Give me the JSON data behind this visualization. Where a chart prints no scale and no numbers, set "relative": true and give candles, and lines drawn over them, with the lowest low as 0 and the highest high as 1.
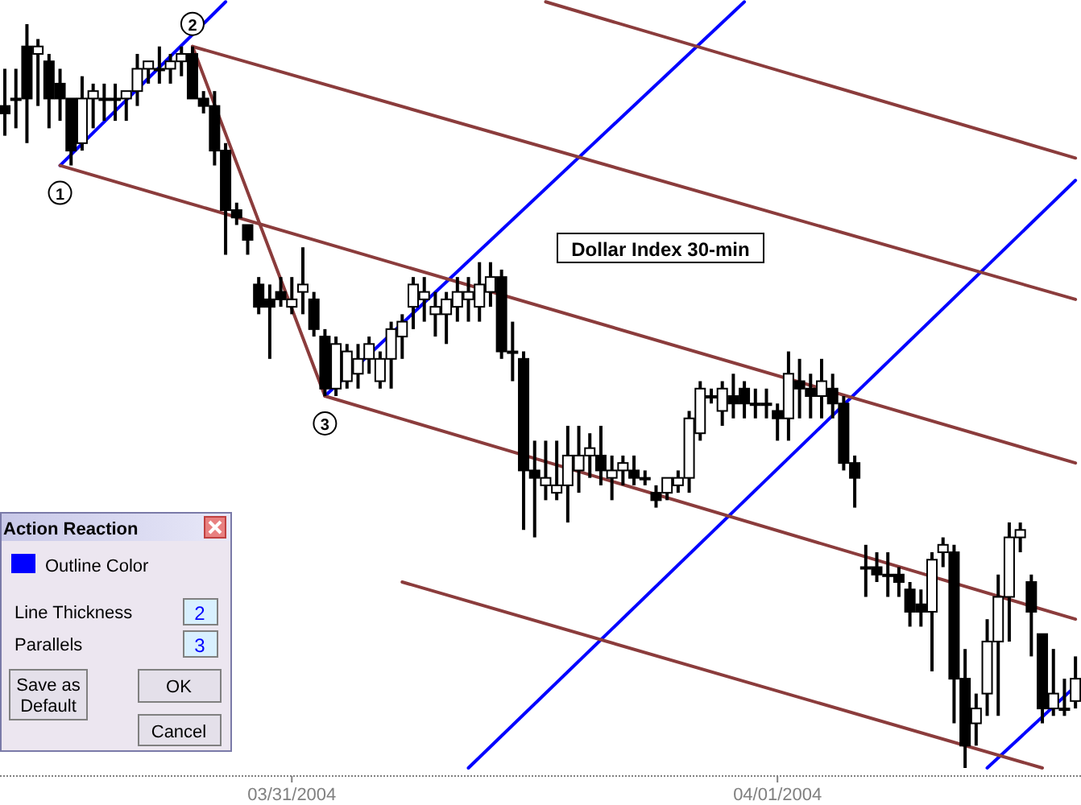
{
  "chart_data": {
    "type": "candlestick",
    "title": "Dollar Index 30-min",
    "relative": true,
    "color": "#000000",
    "categories": [
      null,
      null,
      null,
      null,
      null,
      null,
      null,
      null,
      null,
      null,
      null,
      null,
      null,
      null,
      null,
      null,
      null,
      null,
      null,
      null,
      null,
      null,
      null,
      null,
      null,
      null,
      "03/31/2004",
      null,
      null,
      null,
      null,
      null,
      null,
      null,
      null,
      null,
      null,
      null,
      null,
      null,
      null,
      null,
      null,
      null,
      null,
      null,
      null,
      null,
      null,
      null,
      null,
      null,
      null,
      null,
      null,
      null,
      null,
      null,
      null,
      null,
      null,
      null,
      null,
      null,
      null,
      null,
      null,
      null,
      null,
      null,
      "04/01/2004",
      null,
      null,
      null,
      null,
      null,
      null,
      null,
      null,
      null,
      null,
      null,
      null,
      null,
      null,
      null,
      null,
      null,
      null,
      null,
      null,
      null,
      null,
      null,
      null,
      null,
      null,
      null
    ],
    "ohlc": [
      [
        0.89,
        0.94,
        0.85,
        0.88
      ],
      [
        0.9,
        0.94,
        0.86,
        0.9
      ],
      [
        0.97,
        1.0,
        0.84,
        0.9
      ],
      [
        0.96,
        0.98,
        0.89,
        0.97
      ],
      [
        0.95,
        0.96,
        0.86,
        0.9
      ],
      [
        0.92,
        0.94,
        0.87,
        0.9
      ],
      [
        0.9,
        0.9,
        0.81,
        0.83
      ],
      [
        0.84,
        0.93,
        0.83,
        0.9
      ],
      [
        0.9,
        0.92,
        0.86,
        0.91
      ],
      [
        0.9,
        0.92,
        0.87,
        0.9
      ],
      [
        0.9,
        0.92,
        0.87,
        0.9
      ],
      [
        0.9,
        0.91,
        0.87,
        0.91
      ],
      [
        0.91,
        0.96,
        0.89,
        0.94
      ],
      [
        0.94,
        0.95,
        0.92,
        0.95
      ],
      [
        0.94,
        0.97,
        0.92,
        0.94
      ],
      [
        0.94,
        0.96,
        0.92,
        0.95
      ],
      [
        0.95,
        0.97,
        0.93,
        0.96
      ],
      [
        0.96,
        0.97,
        0.9,
        0.9
      ],
      [
        0.9,
        0.91,
        0.88,
        0.89
      ],
      [
        0.89,
        0.91,
        0.81,
        0.83
      ],
      [
        0.83,
        0.84,
        0.69,
        0.75
      ],
      [
        0.75,
        0.76,
        0.73,
        0.74
      ],
      [
        0.73,
        0.73,
        0.69,
        0.71
      ],
      [
        0.65,
        0.66,
        0.61,
        0.62
      ],
      [
        0.63,
        0.65,
        0.55,
        0.62
      ],
      [
        0.64,
        0.66,
        0.62,
        0.63
      ],
      [
        0.62,
        0.66,
        0.61,
        0.63
      ],
      [
        0.64,
        0.7,
        0.61,
        0.65
      ],
      [
        0.63,
        0.64,
        0.58,
        0.59
      ],
      [
        0.58,
        0.59,
        0.5,
        0.51
      ],
      [
        0.51,
        0.58,
        0.5,
        0.57
      ],
      [
        0.52,
        0.57,
        0.51,
        0.56
      ],
      [
        0.53,
        0.57,
        0.51,
        0.55
      ],
      [
        0.55,
        0.58,
        0.53,
        0.57
      ],
      [
        0.52,
        0.56,
        0.51,
        0.55
      ],
      [
        0.55,
        0.6,
        0.51,
        0.59
      ],
      [
        0.58,
        0.61,
        0.55,
        0.6
      ],
      [
        0.62,
        0.66,
        0.59,
        0.65
      ],
      [
        0.63,
        0.66,
        0.6,
        0.64
      ],
      [
        0.61,
        0.64,
        0.58,
        0.62
      ],
      [
        0.61,
        0.64,
        0.57,
        0.63
      ],
      [
        0.62,
        0.66,
        0.6,
        0.64
      ],
      [
        0.63,
        0.66,
        0.6,
        0.64
      ],
      [
        0.62,
        0.68,
        0.6,
        0.65
      ],
      [
        0.64,
        0.68,
        0.62,
        0.66
      ],
      [
        0.66,
        0.67,
        0.55,
        0.56
      ],
      [
        0.56,
        0.6,
        0.52,
        0.56
      ],
      [
        0.55,
        0.56,
        0.32,
        0.4
      ],
      [
        0.4,
        0.44,
        0.31,
        0.39
      ],
      [
        0.38,
        0.44,
        0.36,
        0.39
      ],
      [
        0.37,
        0.44,
        0.36,
        0.38
      ],
      [
        0.38,
        0.46,
        0.33,
        0.42
      ],
      [
        0.4,
        0.46,
        0.37,
        0.42
      ],
      [
        0.42,
        0.45,
        0.39,
        0.43
      ],
      [
        0.42,
        0.46,
        0.38,
        0.4
      ],
      [
        0.39,
        0.42,
        0.36,
        0.4
      ],
      [
        0.4,
        0.42,
        0.38,
        0.41
      ],
      [
        0.4,
        0.42,
        0.38,
        0.39
      ],
      [
        0.39,
        0.4,
        0.38,
        0.39
      ],
      [
        0.37,
        0.38,
        0.35,
        0.36
      ],
      [
        0.37,
        0.39,
        0.36,
        0.39
      ],
      [
        0.38,
        0.4,
        0.37,
        0.39
      ],
      [
        0.39,
        0.48,
        0.37,
        0.47
      ],
      [
        0.45,
        0.52,
        0.44,
        0.51
      ],
      [
        0.5,
        0.51,
        0.49,
        0.5
      ],
      [
        0.48,
        0.52,
        0.46,
        0.51
      ],
      [
        0.5,
        0.53,
        0.47,
        0.49
      ],
      [
        0.51,
        0.52,
        0.47,
        0.49
      ],
      [
        0.49,
        0.51,
        0.47,
        0.49
      ],
      [
        0.49,
        0.51,
        0.47,
        0.49
      ],
      [
        0.48,
        0.49,
        0.44,
        0.47
      ],
      [
        0.47,
        0.56,
        0.44,
        0.53
      ],
      [
        0.52,
        0.55,
        0.47,
        0.51
      ],
      [
        0.51,
        0.53,
        0.47,
        0.5
      ],
      [
        0.5,
        0.55,
        0.47,
        0.52
      ],
      [
        0.51,
        0.53,
        0.47,
        0.49
      ],
      [
        0.49,
        0.5,
        0.4,
        0.41
      ],
      [
        0.41,
        0.42,
        0.35,
        0.39
      ],
      [
        0.27,
        0.3,
        0.23,
        0.27
      ],
      [
        0.27,
        0.29,
        0.25,
        0.26
      ],
      [
        0.26,
        0.29,
        0.23,
        0.26
      ],
      [
        0.26,
        0.27,
        0.23,
        0.25
      ],
      [
        0.24,
        0.25,
        0.19,
        0.21
      ],
      [
        0.22,
        0.24,
        0.19,
        0.21
      ],
      [
        0.21,
        0.29,
        0.13,
        0.28
      ],
      [
        0.29,
        0.31,
        0.27,
        0.3
      ],
      [
        0.29,
        0.3,
        0.06,
        0.12
      ],
      [
        0.12,
        0.16,
        0,
        0.03
      ],
      [
        0.06,
        0.1,
        0.03,
        0.08
      ],
      [
        0.1,
        0.2,
        0.07,
        0.17
      ],
      [
        0.17,
        0.26,
        0.07,
        0.23
      ],
      [
        0.23,
        0.33,
        0.17,
        0.31
      ],
      [
        0.31,
        0.33,
        0.29,
        0.32
      ],
      [
        0.25,
        0.26,
        0.15,
        0.21
      ],
      [
        0.18,
        0.18,
        0.06,
        0.08
      ],
      [
        0.08,
        0.16,
        0.07,
        0.1
      ],
      [
        0.08,
        0.12,
        0.07,
        0.08
      ],
      [
        0.09,
        0.15,
        0.08,
        0.12
      ]
    ],
    "series": [
      {
        "type": "line",
        "color": "#0000ff",
        "values": [
          null,
          null,
          null,
          null,
          null,
          0.81,
          null,
          null,
          null,
          null,
          null,
          null,
          null,
          null,
          null,
          null,
          null,
          null,
          null,
          null,
          1.03,
          null,
          null,
          null,
          null,
          null,
          null,
          null,
          null,
          null,
          null,
          null,
          null,
          null,
          null,
          null,
          null,
          null,
          null,
          null,
          null,
          null,
          null,
          null,
          null,
          null,
          null,
          null,
          null,
          null,
          null,
          null,
          null,
          null,
          null,
          null,
          null,
          null,
          null,
          null,
          null,
          null,
          null,
          null,
          null,
          null,
          null,
          null,
          null,
          null,
          null,
          null,
          null,
          null,
          null,
          null,
          null,
          null,
          null,
          null,
          null,
          null,
          null,
          null,
          null,
          null,
          null,
          null,
          null,
          null,
          null,
          null,
          null,
          null,
          null,
          null,
          null,
          null
        ]
      },
      {
        "type": "line",
        "color": "#0000ff",
        "values": [
          null,
          null,
          null,
          null,
          null,
          null,
          null,
          null,
          null,
          null,
          null,
          null,
          null,
          null,
          null,
          null,
          null,
          null,
          null,
          null,
          null,
          null,
          null,
          null,
          null,
          null,
          null,
          null,
          null,
          0.5,
          null,
          null,
          null,
          null,
          null,
          null,
          null,
          null,
          null,
          null,
          null,
          null,
          null,
          null,
          null,
          null,
          null,
          null,
          null,
          null,
          null,
          null,
          null,
          null,
          null,
          null,
          null,
          null,
          null,
          null,
          null,
          null,
          null,
          null,
          null,
          null,
          null,
          1.03,
          null,
          null,
          null,
          null,
          null,
          null,
          null,
          null,
          null,
          null,
          null,
          null,
          null,
          null,
          null,
          null,
          null,
          null,
          null,
          null,
          null,
          null,
          null,
          null,
          null,
          null,
          null,
          null,
          null,
          null
        ]
      },
      {
        "type": "line",
        "color": "#0000ff",
        "values": [
          null,
          null,
          null,
          null,
          null,
          null,
          null,
          null,
          null,
          null,
          null,
          null,
          null,
          null,
          null,
          null,
          null,
          null,
          null,
          null,
          null,
          null,
          null,
          null,
          null,
          null,
          null,
          null,
          null,
          null,
          null,
          null,
          null,
          null,
          null,
          null,
          null,
          null,
          null,
          null,
          null,
          null,
          0.0,
          null,
          null,
          null,
          null,
          null,
          null,
          null,
          null,
          null,
          null,
          null,
          null,
          null,
          null,
          null,
          null,
          null,
          null,
          null,
          null,
          null,
          null,
          null,
          null,
          null,
          null,
          null,
          null,
          null,
          null,
          null,
          null,
          null,
          null,
          null,
          null,
          null,
          null,
          null,
          null,
          null,
          null,
          null,
          null,
          null,
          null,
          null,
          null,
          null,
          null,
          null,
          null,
          null,
          null,
          0.79
        ]
      },
      {
        "type": "line",
        "color": "#0000ff",
        "values": [
          null,
          null,
          null,
          null,
          null,
          null,
          null,
          null,
          null,
          null,
          null,
          null,
          null,
          null,
          null,
          null,
          null,
          null,
          null,
          null,
          null,
          null,
          null,
          null,
          null,
          null,
          null,
          null,
          null,
          null,
          null,
          null,
          null,
          null,
          null,
          null,
          null,
          null,
          null,
          null,
          null,
          null,
          null,
          null,
          null,
          null,
          null,
          null,
          null,
          null,
          null,
          null,
          null,
          null,
          null,
          null,
          null,
          null,
          null,
          null,
          null,
          null,
          null,
          null,
          null,
          null,
          null,
          null,
          null,
          null,
          null,
          null,
          null,
          null,
          null,
          null,
          null,
          null,
          null,
          null,
          null,
          null,
          null,
          null,
          null,
          null,
          null,
          null,
          null,
          0.0,
          null,
          null,
          null,
          null,
          null,
          null,
          null,
          0.11
        ]
      },
      {
        "type": "line",
        "color": "#8b3c3c",
        "values": [
          null,
          null,
          null,
          null,
          null,
          null,
          null,
          null,
          null,
          null,
          null,
          null,
          null,
          null,
          null,
          null,
          null,
          null,
          null,
          null,
          null,
          null,
          null,
          null,
          null,
          null,
          null,
          null,
          null,
          null,
          null,
          null,
          null,
          null,
          null,
          null,
          null,
          null,
          null,
          null,
          null,
          null,
          null,
          null,
          null,
          null,
          null,
          null,
          null,
          1.03,
          null,
          null,
          null,
          null,
          null,
          null,
          null,
          null,
          null,
          null,
          null,
          null,
          null,
          null,
          null,
          null,
          null,
          null,
          null,
          null,
          null,
          null,
          null,
          null,
          null,
          null,
          null,
          null,
          null,
          null,
          null,
          null,
          null,
          null,
          null,
          null,
          null,
          null,
          null,
          null,
          null,
          null,
          null,
          null,
          null,
          null,
          null,
          0.82
        ]
      },
      {
        "type": "line",
        "color": "#8b3c3c",
        "values": [
          null,
          null,
          null,
          null,
          null,
          null,
          null,
          null,
          null,
          null,
          null,
          null,
          null,
          null,
          null,
          null,
          null,
          0.97,
          null,
          null,
          null,
          null,
          null,
          null,
          null,
          null,
          null,
          null,
          null,
          null,
          null,
          null,
          null,
          null,
          null,
          null,
          null,
          null,
          null,
          null,
          null,
          null,
          null,
          null,
          null,
          null,
          null,
          null,
          null,
          null,
          null,
          null,
          null,
          null,
          null,
          null,
          null,
          null,
          null,
          null,
          null,
          null,
          null,
          null,
          null,
          null,
          null,
          null,
          null,
          null,
          null,
          null,
          null,
          null,
          null,
          null,
          null,
          null,
          null,
          null,
          null,
          null,
          null,
          null,
          null,
          null,
          null,
          null,
          null,
          null,
          null,
          null,
          null,
          null,
          null,
          null,
          null,
          0.63
        ]
      },
      {
        "type": "line",
        "color": "#8b3c3c",
        "values": [
          null,
          null,
          null,
          null,
          null,
          0.81,
          null,
          null,
          null,
          null,
          null,
          null,
          null,
          null,
          null,
          null,
          null,
          null,
          null,
          null,
          null,
          null,
          null,
          null,
          null,
          null,
          null,
          null,
          null,
          null,
          null,
          null,
          null,
          null,
          null,
          null,
          null,
          null,
          null,
          null,
          null,
          null,
          null,
          null,
          null,
          null,
          null,
          null,
          null,
          null,
          null,
          null,
          null,
          null,
          null,
          null,
          null,
          null,
          null,
          null,
          null,
          null,
          null,
          null,
          null,
          null,
          null,
          null,
          null,
          null,
          null,
          null,
          null,
          null,
          null,
          null,
          null,
          null,
          null,
          null,
          null,
          null,
          null,
          null,
          null,
          null,
          null,
          null,
          null,
          null,
          null,
          null,
          null,
          null,
          null,
          null,
          null,
          0.41
        ]
      },
      {
        "type": "line",
        "color": "#8b3c3c",
        "values": [
          null,
          null,
          null,
          null,
          null,
          null,
          null,
          null,
          null,
          null,
          null,
          null,
          null,
          null,
          null,
          null,
          null,
          null,
          null,
          null,
          null,
          null,
          null,
          null,
          null,
          null,
          null,
          null,
          null,
          0.5,
          null,
          null,
          null,
          null,
          null,
          null,
          null,
          null,
          null,
          null,
          null,
          null,
          null,
          null,
          null,
          null,
          null,
          null,
          null,
          null,
          null,
          null,
          null,
          null,
          null,
          null,
          null,
          null,
          null,
          null,
          null,
          null,
          null,
          null,
          null,
          null,
          null,
          null,
          null,
          null,
          null,
          null,
          null,
          null,
          null,
          null,
          null,
          null,
          null,
          null,
          null,
          null,
          null,
          null,
          null,
          null,
          null,
          null,
          null,
          null,
          null,
          null,
          null,
          null,
          null,
          null,
          null,
          0.2
        ]
      },
      {
        "type": "line",
        "color": "#8b3c3c",
        "values": [
          null,
          null,
          null,
          null,
          null,
          null,
          null,
          null,
          null,
          null,
          null,
          null,
          null,
          null,
          null,
          null,
          null,
          null,
          null,
          null,
          null,
          null,
          null,
          null,
          null,
          null,
          null,
          null,
          null,
          null,
          null,
          null,
          null,
          null,
          null,
          null,
          0.25,
          null,
          null,
          null,
          null,
          null,
          null,
          null,
          null,
          null,
          null,
          null,
          null,
          null,
          null,
          null,
          null,
          null,
          null,
          null,
          null,
          null,
          null,
          null,
          null,
          null,
          null,
          null,
          null,
          null,
          null,
          null,
          null,
          null,
          null,
          null,
          null,
          null,
          null,
          null,
          null,
          null,
          null,
          null,
          null,
          null,
          null,
          null,
          null,
          null,
          null,
          null,
          null,
          null,
          null,
          null,
          null,
          null,
          0.0,
          null,
          null,
          null
        ]
      },
      {
        "type": "line",
        "color": "#8b3c3c",
        "values": [
          null,
          null,
          null,
          null,
          null,
          null,
          null,
          null,
          null,
          null,
          null,
          null,
          null,
          null,
          null,
          null,
          null,
          0.97,
          null,
          null,
          null,
          null,
          null,
          null,
          null,
          null,
          null,
          null,
          null,
          0.5,
          null,
          null,
          null,
          null,
          null,
          null,
          null,
          null,
          null,
          null,
          null,
          null,
          null,
          null,
          null,
          null,
          null,
          null,
          null,
          null,
          null,
          null,
          null,
          null,
          null,
          null,
          null,
          null,
          null,
          null,
          null,
          null,
          null,
          null,
          null,
          null,
          null,
          null,
          null,
          null,
          null,
          null,
          null,
          null,
          null,
          null,
          null,
          null,
          null,
          null,
          null,
          null,
          null,
          null,
          null,
          null,
          null,
          null,
          null,
          null,
          null,
          null,
          null,
          null,
          null,
          null,
          null,
          null
        ]
      }
    ],
    "annotations": [
      "1",
      "2",
      "3",
      "Action Reaction",
      "Outline Color",
      "Line Thickness",
      "2",
      "Parallels",
      "3",
      "Save as Default",
      "OK",
      "Cancel"
    ]
  }
}
